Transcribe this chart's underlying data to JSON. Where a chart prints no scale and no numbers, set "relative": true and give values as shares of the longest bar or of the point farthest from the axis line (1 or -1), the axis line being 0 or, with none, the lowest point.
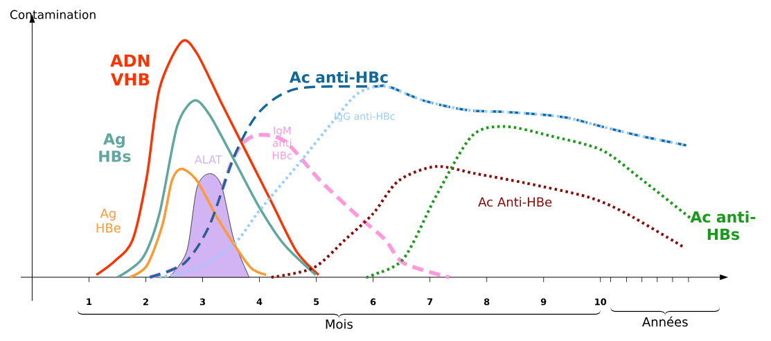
{
  "chart_data": {
    "type": "line",
    "relative": true,
    "ylabel": "Contamination",
    "xlabel": "Mois",
    "annotations": [
      "Années"
    ],
    "xlim": [
      -0.2,
      12.1
    ],
    "xticks": [
      1,
      2,
      3,
      4,
      5,
      6,
      7,
      8,
      9,
      10,
      {
        "value": 10.18,
        "label": null
      },
      {
        "value": 10.46,
        "label": null
      },
      {
        "value": 10.73,
        "label": null
      },
      {
        "value": 11.0,
        "label": null
      },
      {
        "value": 11.27,
        "label": null
      },
      {
        "value": 11.55,
        "label": null
      }
    ],
    "series": [
      {
        "name": "ADN VHB",
        "line_style": "solid",
        "color": "#ff3300",
        "x": [
          1.13,
          1.46,
          1.77,
          2.02,
          2.24,
          2.63,
          2.9,
          3.33,
          3.77,
          4.21,
          4.65,
          5.04
        ],
        "values": [
          0.01,
          0.07,
          0.16,
          0.43,
          0.8,
          1,
          0.95,
          0.74,
          0.53,
          0.32,
          0.11,
          0.01
        ]
      },
      {
        "name": "Ag HBs",
        "line_style": "solid",
        "color": "#5fa8a0",
        "x": [
          1.5,
          1.94,
          2.24,
          2.55,
          2.85,
          3.12,
          3.55,
          3.99,
          4.43,
          4.99
        ],
        "values": [
          0,
          0.08,
          0.27,
          0.64,
          0.75,
          0.69,
          0.5,
          0.3,
          0.14,
          0.01
        ]
      },
      {
        "name": "Ag HBe",
        "line_style": "solid",
        "color": "#ff9933",
        "x": [
          1.72,
          2.02,
          2.29,
          2.46,
          2.63,
          2.9,
          3.24,
          3.55,
          3.85,
          4.12
        ],
        "values": [
          0,
          0.05,
          0.22,
          0.41,
          0.46,
          0.41,
          0.26,
          0.14,
          0.04,
          0.01
        ]
      },
      {
        "name": "ALAT",
        "type": "area",
        "color": "#d2b4f5",
        "x": [
          2.41,
          2.72,
          2.9,
          3.12,
          3.33,
          3.55,
          3.82
        ],
        "values": [
          0,
          0.11,
          0.38,
          0.44,
          0.39,
          0.16,
          0
        ]
      },
      {
        "name": "Ac anti-HBc",
        "line_style": "dashed",
        "color": "#11699a",
        "x": [
          2.07,
          2.68,
          3.12,
          3.55,
          3.99,
          4.65,
          6.0,
          6.27,
          6.89,
          7.65,
          8.45,
          9.35,
          10.02,
          10.7,
          11.51
        ],
        "values": [
          0,
          0.06,
          0.22,
          0.51,
          0.7,
          0.8,
          0.81,
          0.81,
          0.75,
          0.71,
          0.7,
          0.68,
          0.64,
          0.6,
          0.56
        ]
      },
      {
        "name": "IgM anti HBc",
        "line_style": "dashed",
        "color": "#ff99dd",
        "x": [
          2.07,
          2.68,
          3.12,
          3.55,
          3.9,
          4.43,
          5.07,
          5.73,
          6.21,
          6.54,
          7.34
        ],
        "values": [
          0,
          0.06,
          0.22,
          0.51,
          0.6,
          0.58,
          0.41,
          0.26,
          0.16,
          0.06,
          0
        ]
      },
      {
        "name": "IgG anti-HBc",
        "line_style": "dotted",
        "color": "#99ccff",
        "x": [
          2.24,
          2.9,
          3.55,
          3.99,
          4.65,
          5.29,
          5.73,
          6.21,
          6.89,
          7.65,
          8.45,
          9.35,
          10.02,
          10.7,
          11.51
        ],
        "values": [
          0,
          0.04,
          0.14,
          0.28,
          0.47,
          0.66,
          0.78,
          0.81,
          0.75,
          0.71,
          0.7,
          0.68,
          0.64,
          0.6,
          0.56
        ]
      },
      {
        "name": "Ac Anti-HBe",
        "line_style": "dotted",
        "color": "#8b0a0a",
        "x": [
          4.21,
          4.95,
          5.51,
          6.0,
          6.45,
          7.1,
          7.8,
          8.68,
          9.79,
          10.46,
          11.45
        ],
        "values": [
          0,
          0.04,
          0.16,
          0.27,
          0.41,
          0.47,
          0.44,
          0.4,
          0.34,
          0.27,
          0.13
        ]
      },
      {
        "name": "Ac anti-HBs",
        "line_style": "dotted",
        "color": "#1a9a1a",
        "x": [
          5.88,
          6.0,
          6.54,
          7.12,
          7.74,
          8.32,
          9.12,
          10.02,
          10.7,
          11.59
        ],
        "values": [
          0,
          0.01,
          0.08,
          0.35,
          0.6,
          0.64,
          0.6,
          0.54,
          0.42,
          0.25
        ]
      }
    ]
  }
}
